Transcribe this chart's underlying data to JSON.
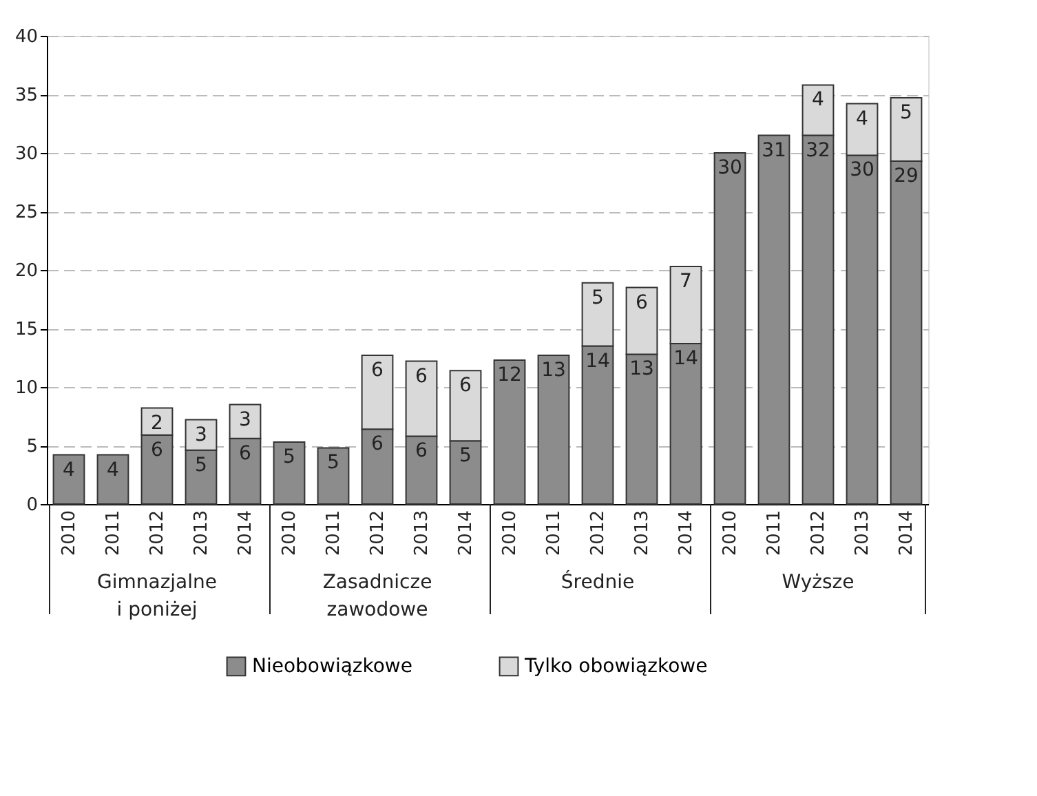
{
  "chart_data": {
    "type": "bar",
    "stacked": true,
    "categories": [
      "2010",
      "2011",
      "2012",
      "2013",
      "2014",
      "2010",
      "2011",
      "2012",
      "2013",
      "2014",
      "2010",
      "2011",
      "2012",
      "2013",
      "2014",
      "2010",
      "2011",
      "2012",
      "2013",
      "2014"
    ],
    "series": [
      {
        "name": "Nieobowiązkowe",
        "color": "#8c8c8c",
        "values": [
          4.2,
          4.2,
          5.9,
          4.6,
          5.6,
          5.3,
          4.8,
          6.4,
          5.8,
          5.4,
          12.3,
          12.7,
          13.5,
          12.8,
          13.7,
          30.0,
          31.5,
          31.5,
          29.8,
          29.3
        ],
        "value_labels": [
          "4",
          "4",
          "6",
          "5",
          "6",
          "5",
          "5",
          "6",
          "6",
          "5",
          "12",
          "13",
          "14",
          "13",
          "14",
          "30",
          "31",
          "32",
          "30",
          "29"
        ]
      },
      {
        "name": "Tylko obowiązkowe",
        "color": "#d9d9d9",
        "values": [
          null,
          null,
          2.3,
          2.6,
          2.9,
          null,
          null,
          6.3,
          6.4,
          6.0,
          null,
          null,
          5.4,
          5.7,
          6.6,
          null,
          null,
          4.3,
          4.4,
          5.4
        ],
        "value_labels": [
          null,
          null,
          "2",
          "3",
          "3",
          null,
          null,
          "6",
          "6",
          "6",
          null,
          null,
          "5",
          "6",
          "7",
          null,
          null,
          "4",
          "4",
          "5"
        ]
      }
    ],
    "annotations": [
      "Gimnazjalne\ni poniżej",
      "Zasadnicze\nzawodowe",
      "Średnie",
      "Wyższe"
    ],
    "ylim": [
      0,
      40
    ],
    "yticks": [
      0,
      5,
      10,
      15,
      20,
      25,
      30,
      35,
      40
    ],
    "grid": "y",
    "legend": "bottom"
  }
}
